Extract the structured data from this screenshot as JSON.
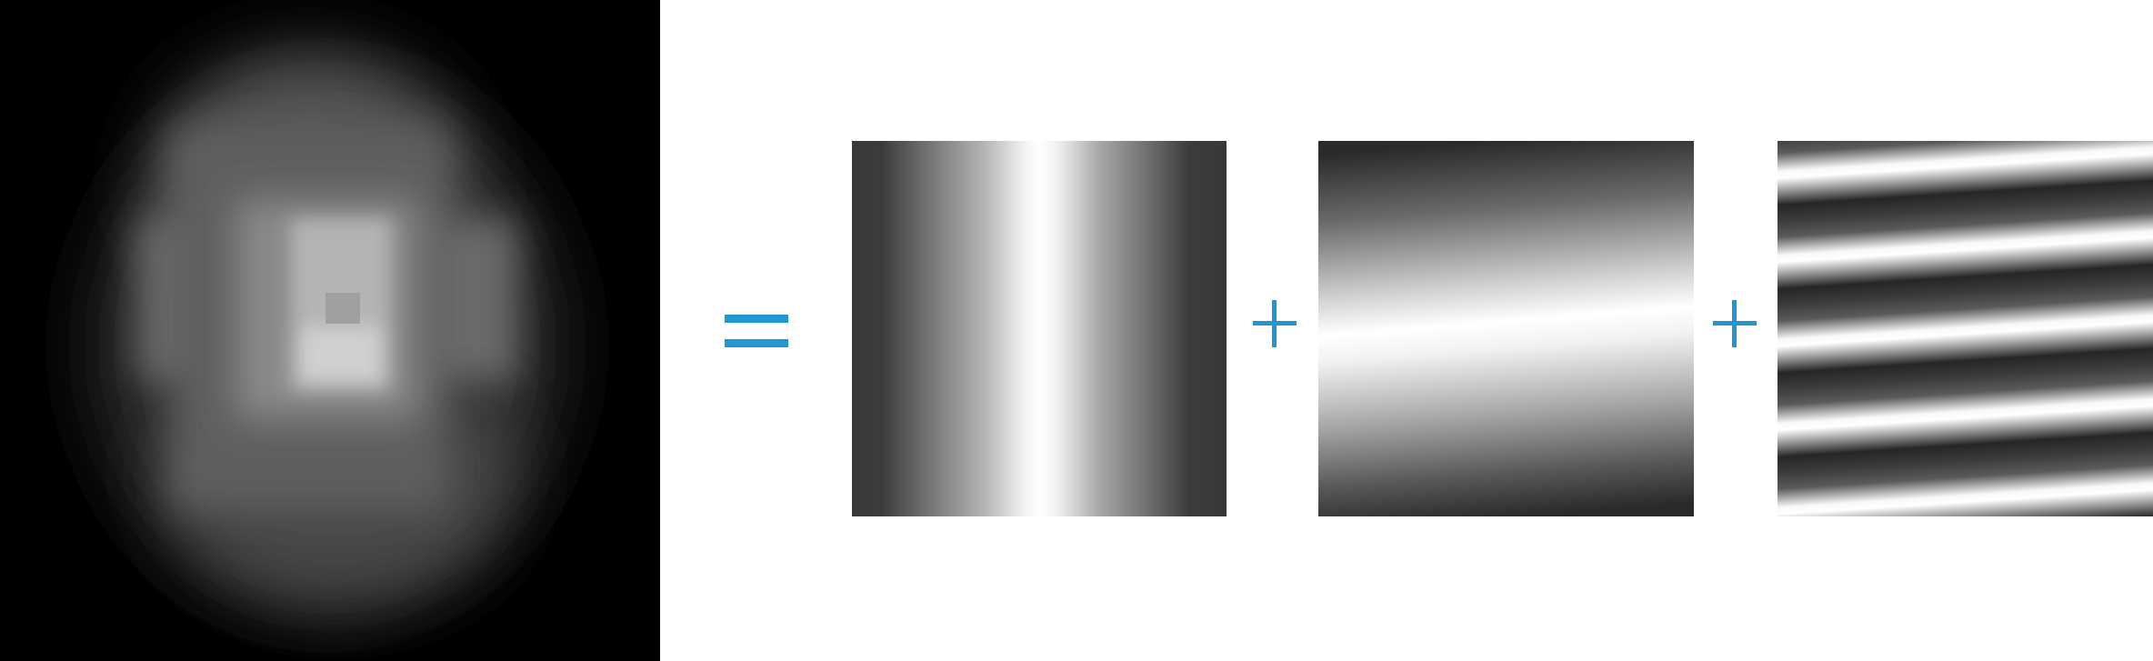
{
  "figure": {
    "description_visible_text": "",
    "operators": {
      "equals": "=",
      "plus": "+"
    },
    "colors": {
      "operator": "#1f97d1",
      "background": "#ffffff"
    },
    "panels": [
      {
        "name": "source-image",
        "kind": "blurred grayscale image"
      },
      {
        "name": "component-1",
        "kind": "vertical sinusoidal grating"
      },
      {
        "name": "component-2",
        "kind": "tilted low-frequency grating"
      },
      {
        "name": "component-3",
        "kind": "tilted high-frequency grating"
      }
    ]
  }
}
